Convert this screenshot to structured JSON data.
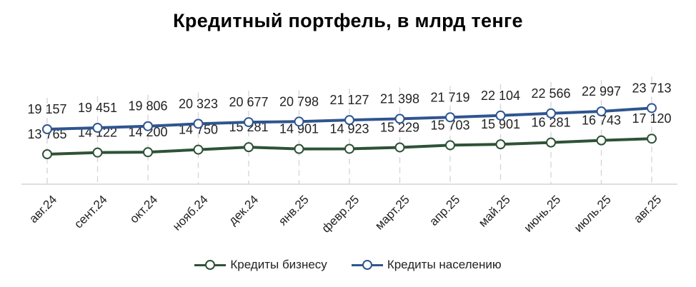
{
  "chart_data": {
    "type": "line",
    "title": "Кредитный портфель, в млрд тенге",
    "categories": [
      "авг.24",
      "сент.24",
      "окт.24",
      "нояб.24",
      "дек.24",
      "янв.25",
      "февр.25",
      "март.25",
      "апр.25",
      "май.25",
      "июнь.25",
      "июль.25",
      "авг.25"
    ],
    "series": [
      {
        "name": "Кредиты бизнесу",
        "color": "#2e5236",
        "values": [
          13765,
          14122,
          14200,
          14750,
          15281,
          14901,
          14923,
          15229,
          15703,
          15901,
          16281,
          16743,
          17120
        ],
        "labels": [
          "13 765",
          "14 122",
          "14 200",
          "14 750",
          "15 281",
          "14 901",
          "14 923",
          "15 229",
          "15 703",
          "15 901",
          "16 281",
          "16 743",
          "17 120"
        ]
      },
      {
        "name": "Кредиты населению",
        "color": "#2f5590",
        "values": [
          19157,
          19451,
          19806,
          20323,
          20677,
          20798,
          21127,
          21398,
          21719,
          22104,
          22566,
          22997,
          23713
        ],
        "labels": [
          "19 157",
          "19 451",
          "19 806",
          "20 323",
          "20 677",
          "20 798",
          "21 127",
          "21 398",
          "21 719",
          "22 104",
          "22 566",
          "22 997",
          "23 713"
        ]
      }
    ],
    "xlabel": "",
    "ylabel": "",
    "grid": "vertical-dashed",
    "legend": "bottom-center"
  }
}
